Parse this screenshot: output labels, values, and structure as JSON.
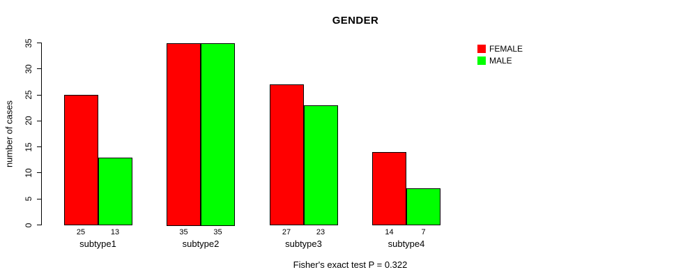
{
  "chart_data": {
    "type": "bar",
    "title": "GENDER",
    "ylabel": "number of cases",
    "xlabel": "",
    "categories": [
      "subtype1",
      "subtype2",
      "subtype3",
      "subtype4"
    ],
    "series": [
      {
        "name": "FEMALE",
        "color": "#ff0000",
        "values": [
          25,
          35,
          27,
          14
        ]
      },
      {
        "name": "MALE",
        "color": "#00ff00",
        "values": [
          13,
          35,
          23,
          7
        ]
      }
    ],
    "bar_value_labels": [
      [
        "25",
        "13"
      ],
      [
        "35",
        "35"
      ],
      [
        "27",
        "23"
      ],
      [
        "14",
        "7"
      ]
    ],
    "yticks": [
      "0",
      "5",
      "10",
      "15",
      "20",
      "25",
      "30",
      "35"
    ],
    "ylim": [
      0,
      35
    ],
    "grid": false,
    "legend_position": "top-right",
    "legend": [
      {
        "label": "FEMALE",
        "color": "#ff0000"
      },
      {
        "label": "MALE",
        "color": "#00ff00"
      }
    ],
    "footnote": "Fisher's exact test P = 0.322",
    "bar_border_color": "#000000",
    "axis_color": "#000000"
  }
}
